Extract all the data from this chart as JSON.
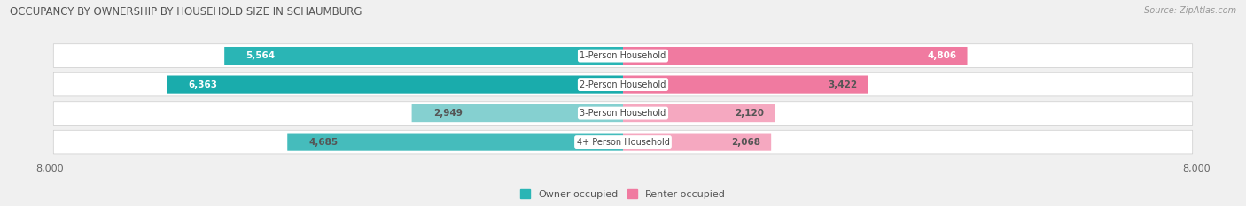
{
  "title": "OCCUPANCY BY OWNERSHIP BY HOUSEHOLD SIZE IN SCHAUMBURG",
  "source": "Source: ZipAtlas.com",
  "categories": [
    "1-Person Household",
    "2-Person Household",
    "3-Person Household",
    "4+ Person Household"
  ],
  "owner_values": [
    5564,
    6363,
    2949,
    4685
  ],
  "renter_values": [
    4806,
    3422,
    2120,
    2068
  ],
  "owner_colors": [
    "#2ab5b5",
    "#1aacac",
    "#85d0d0",
    "#45bcbc"
  ],
  "renter_colors": [
    "#f07aa0",
    "#f07aa0",
    "#f5a8c0",
    "#f5a8c0"
  ],
  "owner_label_colors": [
    "white",
    "white",
    "#555555",
    "#555555"
  ],
  "renter_label_colors": [
    "white",
    "#555555",
    "#555555",
    "#555555"
  ],
  "axis_max": 8000,
  "background_color": "#f0f0f0",
  "row_bg_color": "#e8e8e8",
  "legend_owner_color": "#2ab5b5",
  "legend_renter_color": "#f07aa0"
}
